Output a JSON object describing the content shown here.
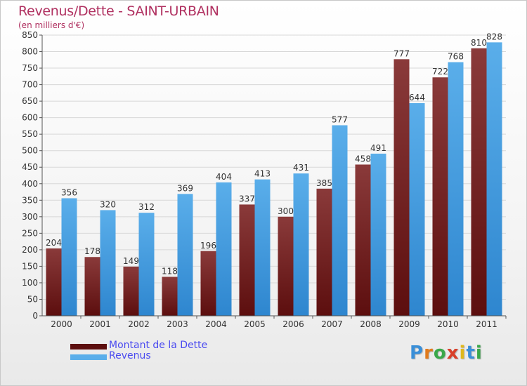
{
  "title": "Revenus/Dette - SAINT-URBAIN",
  "subtitle": "(en milliers d'€)",
  "colors": {
    "dette_dark": "#5c0e0e",
    "dette_light": "#8a3a3a",
    "revenus_dark": "#2e86cf",
    "revenus_light": "#5aaeea",
    "axis_text": "#333333",
    "grid": "#d8d8d8"
  },
  "legend": {
    "position": "bottom-left",
    "items": [
      {
        "label": "Montant de la Dette"
      },
      {
        "label": "Revenus"
      }
    ]
  },
  "logo": {
    "letters": [
      "P",
      "r",
      "o",
      "x",
      "i",
      "t",
      "i"
    ],
    "colors": [
      "#3a8fd8",
      "#e07a1c",
      "#3aa84a",
      "#d8402a",
      "#e0b81c",
      "#3a8fd8",
      "#3aa84a"
    ]
  },
  "chart_data": {
    "type": "bar",
    "categories": [
      "2000",
      "2001",
      "2002",
      "2003",
      "2004",
      "2005",
      "2006",
      "2007",
      "2008",
      "2009",
      "2010",
      "2011"
    ],
    "series": [
      {
        "name": "Montant de la Dette",
        "values": [
          204,
          178,
          149,
          118,
          196,
          337,
          300,
          385,
          458,
          777,
          722,
          810
        ]
      },
      {
        "name": "Revenus",
        "values": [
          356,
          320,
          312,
          369,
          404,
          413,
          431,
          577,
          491,
          644,
          768,
          828
        ]
      }
    ],
    "ylim": [
      0,
      850
    ],
    "ytick_step": 50,
    "grid": true
  }
}
